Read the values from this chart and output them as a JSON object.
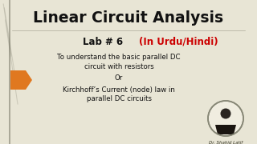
{
  "bg_color": "#e8e5d5",
  "title": "Linear Circuit Analysis",
  "title_fontsize": 13.5,
  "title_color": "#111111",
  "lab_text": "Lab # 6",
  "lab_fontsize": 8.5,
  "lab_color": "#111111",
  "urdu_text": "(In Urdu/Hindi)",
  "urdu_fontsize": 8.5,
  "urdu_color": "#cc0000",
  "line1": "To understand the basic parallel DC",
  "line2": "circuit with resistors",
  "line3": "Or",
  "line4": "Kirchhoff’s Current (node) law in",
  "line5": "parallel DC circuits",
  "body_fontsize": 6.2,
  "body_color": "#111111",
  "arrow_color": "#e07820",
  "vine_color": "#aaa898",
  "circle_color": "#ddddcc",
  "separator_color": "#555544"
}
